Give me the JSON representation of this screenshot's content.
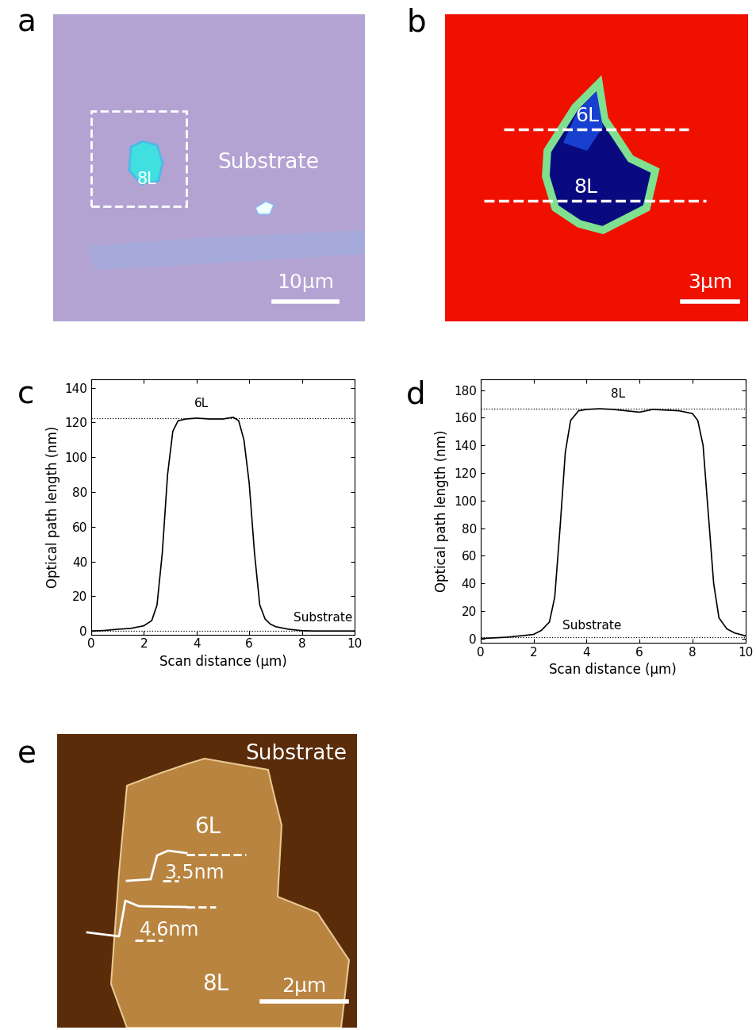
{
  "chart_data": [
    {
      "panel": "c",
      "type": "line",
      "color": "#000000",
      "line_style": "solid",
      "x": [
        0,
        0.5,
        1,
        1.5,
        2,
        2.3,
        2.5,
        2.7,
        2.9,
        3.1,
        3.3,
        3.6,
        4,
        4.5,
        5,
        5.4,
        5.6,
        5.8,
        6,
        6.2,
        6.4,
        6.6,
        6.8,
        7,
        7.5,
        8,
        8.5,
        9,
        10
      ],
      "values": [
        0,
        0.3,
        1,
        1.5,
        3,
        6,
        15,
        45,
        90,
        115,
        121,
        122,
        122.5,
        122,
        122,
        123,
        121,
        110,
        85,
        45,
        15,
        7,
        4,
        2.5,
        1,
        0.2,
        0,
        0,
        0
      ],
      "xlim": [
        0,
        10
      ],
      "ylim": [
        -2,
        145
      ],
      "xticks": [
        0,
        2,
        4,
        6,
        8,
        10
      ],
      "yticks": [
        0,
        20,
        40,
        60,
        80,
        100,
        120,
        140
      ],
      "x_label": "Scan distance (μm)",
      "y_label": "Optical path length (nm)",
      "annotations": [
        "6L",
        "Substrate"
      ],
      "reference_lines": [
        122.5,
        0
      ]
    },
    {
      "panel": "d",
      "type": "line",
      "color": "#000000",
      "line_style": "solid",
      "x": [
        0,
        0.5,
        1,
        1.5,
        2,
        2.3,
        2.6,
        2.8,
        3,
        3.2,
        3.4,
        3.7,
        4,
        4.5,
        5,
        5.5,
        6,
        6.5,
        7,
        7.5,
        8,
        8.2,
        8.4,
        8.6,
        8.8,
        9,
        9.3,
        9.6,
        10
      ],
      "values": [
        0,
        0.5,
        1,
        2,
        3,
        6,
        12,
        30,
        80,
        135,
        158,
        165,
        166,
        166.5,
        166,
        165,
        164,
        166,
        165.5,
        165,
        163,
        158,
        140,
        90,
        40,
        15,
        7,
        4,
        2
      ],
      "xlim": [
        0,
        10
      ],
      "ylim": [
        -3,
        188
      ],
      "xticks": [
        0,
        2,
        4,
        6,
        8,
        10
      ],
      "yticks": [
        0,
        20,
        40,
        60,
        80,
        100,
        120,
        140,
        160,
        180
      ],
      "x_label": "Scan distance (μm)",
      "y_label": "Optical path length (nm)",
      "annotations": [
        "8L",
        "Substrate"
      ],
      "reference_lines": [
        166.5,
        1
      ]
    }
  ],
  "images": [
    {
      "panel": "a",
      "texts": [
        "8L",
        "Substrate"
      ],
      "scale_bar": "10μm"
    },
    {
      "panel": "b",
      "texts": [
        "6L",
        "8L"
      ],
      "scale_bar": "3μm"
    },
    {
      "panel": "e",
      "texts": [
        "Substrate",
        "6L",
        "8L",
        "3.5nm",
        "4.6nm"
      ],
      "scale_bar": "2μm"
    }
  ]
}
